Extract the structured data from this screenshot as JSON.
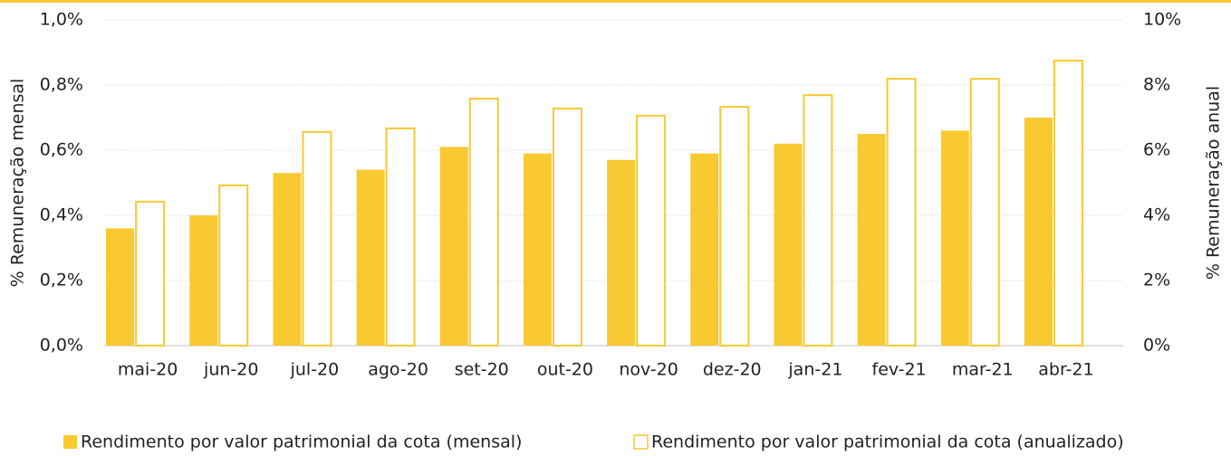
{
  "chart_data": {
    "type": "bar",
    "categories": [
      "mai-20",
      "jun-20",
      "jul-20",
      "ago-20",
      "set-20",
      "out-20",
      "nov-20",
      "dez-20",
      "jan-21",
      "fev-21",
      "mar-21",
      "abr-21"
    ],
    "series": [
      {
        "name": "Rendimento por valor patrimonial da cota (mensal)",
        "color": "#f9c932",
        "values": [
          0.36,
          0.4,
          0.53,
          0.54,
          0.61,
          0.59,
          0.57,
          0.59,
          0.62,
          0.65,
          0.66,
          0.7
        ]
      },
      {
        "name": "Rendimento por valor patrimonial da cota (anualizado)",
        "color": "#f9c932",
        "fill": "#ffffff",
        "axis": "y2",
        "values": [
          4.42,
          4.92,
          6.56,
          6.67,
          7.58,
          7.28,
          7.06,
          7.33,
          7.69,
          8.19,
          8.19,
          8.75
        ]
      }
    ],
    "ylabel": "% Remuneração mensal",
    "y2label": "% Remuneração anual",
    "ylim": [
      0,
      1
    ],
    "yticks": [
      {
        "value": 0,
        "label": "0,0%"
      },
      {
        "value": 0.2,
        "label": "0,2%"
      },
      {
        "value": 0.4,
        "label": "0,4%"
      },
      {
        "value": 0.6,
        "label": "0,6%"
      },
      {
        "value": 0.8,
        "label": "0,8%"
      },
      {
        "value": 1,
        "label": "1,0%"
      }
    ],
    "y2lim": [
      0,
      10
    ],
    "y2ticks": [
      {
        "value": 0,
        "label": "0%"
      },
      {
        "value": 2,
        "label": "2%"
      },
      {
        "value": 4,
        "label": "4%"
      },
      {
        "value": 6,
        "label": "6%"
      },
      {
        "value": 8,
        "label": "8%"
      },
      {
        "value": 10,
        "label": "10%"
      }
    ],
    "grid": true
  }
}
